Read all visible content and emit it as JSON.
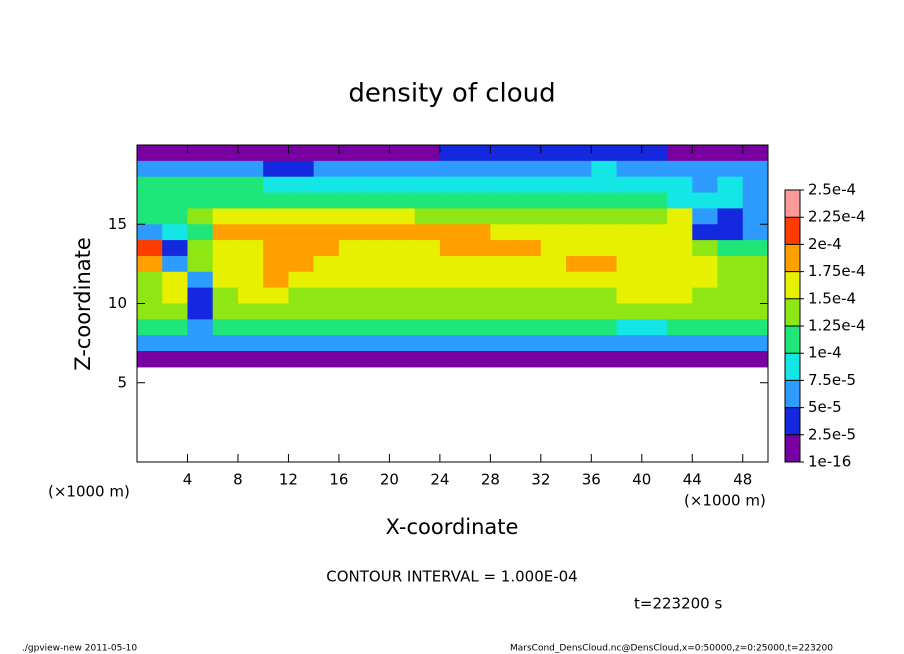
{
  "chart_data": {
    "type": "heatmap",
    "title": "density of cloud",
    "xlabel": "X-coordinate",
    "ylabel": "Z-coordinate",
    "x_unit_left": "(×1000 m)",
    "x_unit_right": "(×1000 m)",
    "contour_note": "CONTOUR INTERVAL = 1.000E-04",
    "time_label": "t=223200 s",
    "footer_left": "./gpview-new  2011-05-10",
    "footer_right": "MarsCond_DensCloud.nc@DensCloud,x=0:50000,z=0:25000,t=223200",
    "xlim": [
      0,
      50
    ],
    "ylim": [
      0,
      20
    ],
    "xticks": [
      4,
      8,
      12,
      16,
      20,
      24,
      28,
      32,
      36,
      40,
      44,
      48
    ],
    "yticks": [
      5,
      10,
      15
    ],
    "colorbar_ticks": [
      1e-16,
      {
        "value": 2.5e-05,
        "label": "2.5e-5"
      },
      {
        "value": 5e-05,
        "label": "5e-5"
      },
      {
        "value": 7.5e-05,
        "label": "7.5e-5"
      },
      {
        "value": 0.0001,
        "label": "1e-4"
      },
      {
        "value": 0.000125,
        "label": "1.25e-4"
      },
      {
        "value": 0.00015,
        "label": "1.5e-4"
      },
      {
        "value": 0.000175,
        "label": "1.75e-4"
      },
      {
        "value": 0.0002,
        "label": "2e-4"
      },
      {
        "value": 0.000225,
        "label": "2.25e-4"
      },
      {
        "value": 0.00025,
        "label": "2.5e-4"
      }
    ],
    "colors": [
      "#7800a0",
      "#1428e0",
      "#2e9bff",
      "#14e6e6",
      "#1ee678",
      "#8ee614",
      "#e6f000",
      "#ffa000",
      "#ff3c00",
      "#ff9a9a"
    ],
    "x": [
      1,
      3,
      5,
      7,
      9,
      11,
      13,
      15,
      17,
      19,
      21,
      23,
      25,
      27,
      29,
      31,
      33,
      35,
      37,
      39,
      41,
      43,
      45,
      47,
      49
    ],
    "y": [
      19.5,
      18.5,
      17.5,
      16.5,
      15.5,
      14.5,
      13.5,
      12.5,
      11.5,
      10.5,
      9.5,
      8.5,
      7.5,
      6.5
    ],
    "values": [
      [
        2e-05,
        2e-05,
        2e-05,
        2e-05,
        2e-05,
        1e-05,
        2e-05,
        2e-05,
        2e-05,
        2e-05,
        2e-05,
        2e-05,
        3e-05,
        3e-05,
        3e-05,
        3e-05,
        3e-05,
        3e-05,
        3e-05,
        3e-05,
        3e-05,
        2e-05,
        2e-05,
        2e-05,
        2e-05
      ],
      [
        7e-05,
        7e-05,
        7e-05,
        6e-05,
        5e-05,
        4e-05,
        4e-05,
        5e-05,
        6e-05,
        6e-05,
        5e-05,
        6e-05,
        7e-05,
        7e-05,
        7e-05,
        7e-05,
        7e-05,
        7e-05,
        8e-05,
        7e-05,
        7e-05,
        6e-05,
        7e-05,
        6e-05,
        5e-05
      ],
      [
        0.0001,
        0.0001,
        0.00011,
        0.00011,
        0.0001,
        9e-05,
        8e-05,
        9e-05,
        8e-05,
        8e-05,
        8e-05,
        8e-05,
        8e-05,
        8e-05,
        9e-05,
        9e-05,
        9e-05,
        8e-05,
        8e-05,
        8e-05,
        8e-05,
        8e-05,
        7e-05,
        8e-05,
        7e-05
      ],
      [
        0.00012,
        0.00012,
        0.00012,
        0.00012,
        0.00012,
        0.00011,
        0.00011,
        0.00011,
        0.00011,
        0.00011,
        0.00011,
        0.00011,
        0.00011,
        0.00011,
        0.00011,
        0.00012,
        0.00012,
        0.00011,
        0.0001,
        0.0001,
        0.00012,
        9e-05,
        8e-05,
        8e-05,
        7e-05
      ],
      [
        0.0001,
        0.00012,
        0.00013,
        0.00015,
        0.00015,
        0.00015,
        0.00015,
        0.00015,
        0.00015,
        0.00015,
        0.00015,
        0.00014,
        0.00014,
        0.00014,
        0.00014,
        0.00014,
        0.00013,
        0.00013,
        0.00013,
        0.00013,
        0.00013,
        0.00015,
        6e-05,
        4e-05,
        6e-05
      ],
      [
        5e-05,
        8e-05,
        0.00012,
        0.00018,
        0.00018,
        0.00018,
        0.00018,
        0.00018,
        0.00018,
        0.00018,
        0.00018,
        0.00018,
        0.00018,
        0.00018,
        0.00017,
        0.00017,
        0.00016,
        0.00016,
        0.00015,
        0.00015,
        0.00015,
        0.00016,
        4e-05,
        3e-05,
        5e-05
      ],
      [
        0.0002,
        4e-05,
        0.00013,
        0.00016,
        0.00017,
        0.00019,
        0.00019,
        0.00018,
        0.00017,
        0.00017,
        0.00017,
        0.00017,
        0.00018,
        0.00018,
        0.00018,
        0.00018,
        0.00017,
        0.00017,
        0.00016,
        0.00016,
        0.00015,
        0.00015,
        0.00014,
        0.00012,
        0.0001
      ],
      [
        0.00019,
        5e-05,
        0.00014,
        0.00016,
        0.00017,
        0.00019,
        0.00018,
        0.00016,
        0.00016,
        0.00016,
        0.00016,
        0.00016,
        0.00016,
        0.00017,
        0.00017,
        0.00017,
        0.00017,
        0.00018,
        0.00018,
        0.00016,
        0.00015,
        0.00016,
        0.00015,
        0.00014,
        0.00014
      ],
      [
        0.00014,
        0.00015,
        5e-05,
        0.00015,
        0.00016,
        0.00018,
        0.00016,
        0.00015,
        0.00015,
        0.00015,
        0.00015,
        0.00015,
        0.00015,
        0.00015,
        0.00015,
        0.00015,
        0.00015,
        0.00015,
        0.00016,
        0.00017,
        0.00016,
        0.00015,
        0.00015,
        0.00014,
        0.00014
      ],
      [
        0.00014,
        0.00015,
        4e-05,
        0.00014,
        0.00015,
        0.00015,
        0.00014,
        0.00014,
        0.00014,
        0.00014,
        0.00014,
        0.00014,
        0.00014,
        0.00014,
        0.00014,
        0.00014,
        0.00014,
        0.00014,
        0.00014,
        0.00015,
        0.00015,
        0.00015,
        0.00014,
        0.00014,
        0.00014
      ],
      [
        0.00014,
        0.00013,
        3e-05,
        0.00013,
        0.00014,
        0.00014,
        0.00014,
        0.00014,
        0.00014,
        0.00014,
        0.00014,
        0.00014,
        0.00014,
        0.00014,
        0.00014,
        0.00014,
        0.00014,
        0.00014,
        0.00014,
        0.00014,
        0.00013,
        0.00014,
        0.00014,
        0.00014,
        0.00014
      ],
      [
        0.0001,
        0.00011,
        6e-05,
        0.00011,
        0.00011,
        0.00011,
        0.00011,
        0.00011,
        0.00011,
        0.00011,
        0.00011,
        0.00011,
        0.00011,
        0.00011,
        0.00011,
        0.00011,
        0.00011,
        0.00011,
        0.0001,
        9e-05,
        9e-05,
        0.00011,
        0.00011,
        0.00011,
        0.00011
      ],
      [
        6e-05,
        5e-05,
        5e-05,
        6e-05,
        6e-05,
        6e-05,
        6e-05,
        6e-05,
        6e-05,
        6e-05,
        6e-05,
        6e-05,
        6e-05,
        6e-05,
        6e-05,
        6e-05,
        6e-05,
        6e-05,
        6e-05,
        6e-05,
        6e-05,
        6e-05,
        6e-05,
        5e-05,
        6e-05
      ],
      [
        1e-05,
        1e-05,
        1e-05,
        1e-05,
        1e-05,
        1e-05,
        1e-05,
        1e-05,
        1e-05,
        1e-05,
        1e-05,
        1e-05,
        1e-05,
        1e-05,
        1e-05,
        1e-05,
        1e-05,
        1e-05,
        1e-05,
        1e-05,
        1e-05,
        1e-05,
        1e-05,
        1e-05,
        1e-05
      ]
    ]
  }
}
